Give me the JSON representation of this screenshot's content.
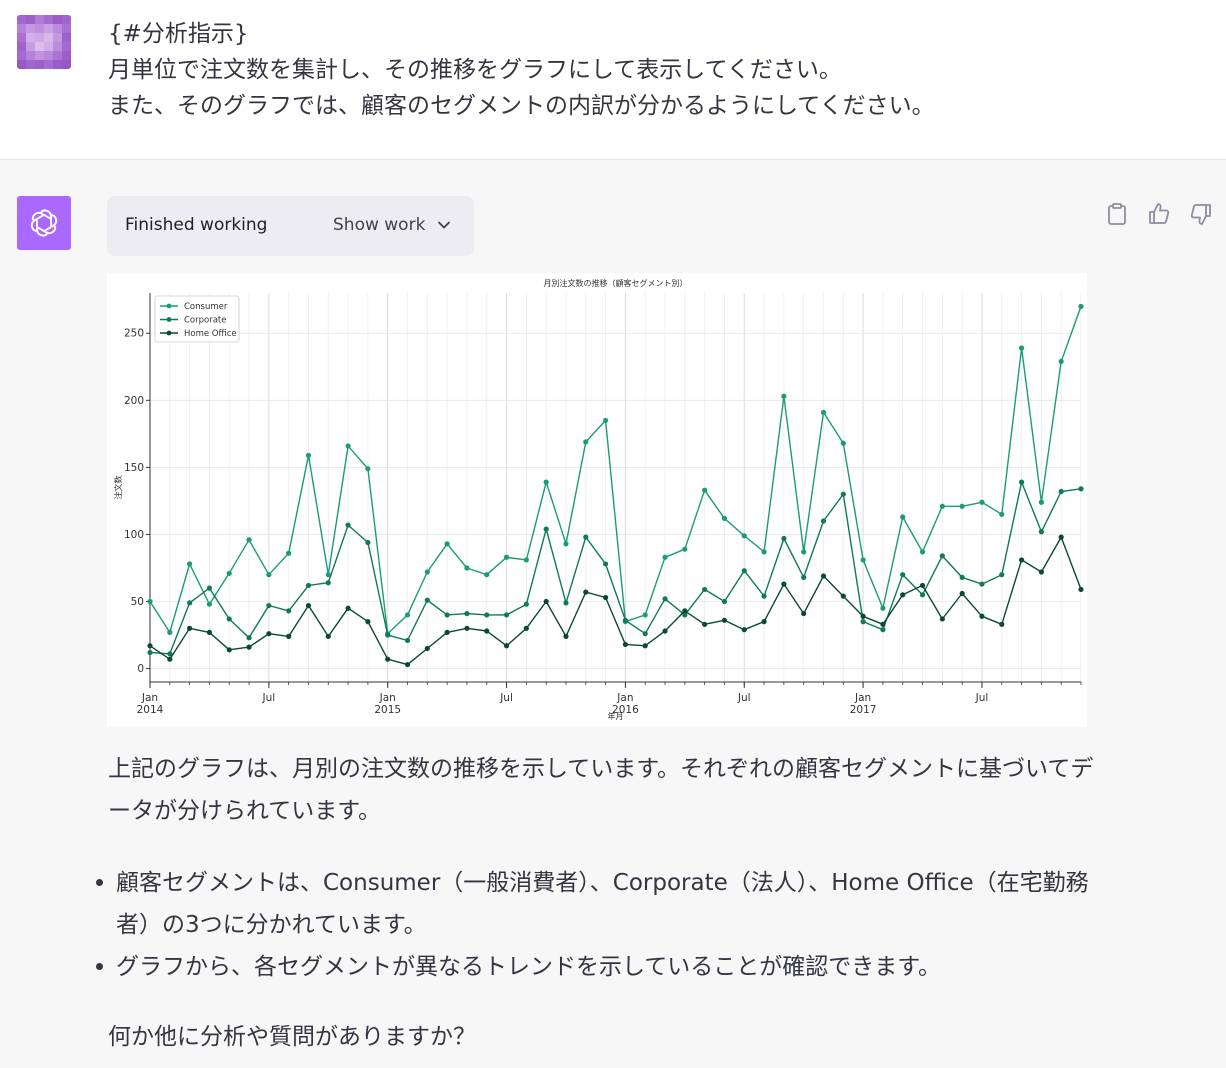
{
  "user_message": {
    "lines": [
      "{#分析指示}",
      "月単位で注文数を集計し、その推移をグラフにして表示してください。",
      "また、そのグラフでは、顧客のセグメントの内訳が分かるようにしてください。"
    ]
  },
  "assistant": {
    "status_label": "Finished working",
    "show_work_label": "Show work",
    "answer_paragraph": "上記のグラフは、月別の注文数の推移を示しています。それぞれの顧客セグメントに基づいてデータが分けられています。",
    "bullets": [
      "顧客セグメントは、Consumer（一般消費者）、Corporate（法人）、Home Office（在宅勤務者）の3つに分かれています。",
      "グラフから、各セグメントが異なるトレンドを示していることが確認できます。"
    ],
    "closing": "何か他に分析や質問がありますか？"
  },
  "icons": {
    "copy": "clipboard-icon",
    "like": "thumbs-up-icon",
    "dislike": "thumbs-down-icon",
    "bot": "openai-logo-icon",
    "chevron": "chevron-down-icon"
  },
  "colors": {
    "bot_avatar": "#ab68ff",
    "user_avatar": "#9b59c9",
    "consumer": "#1a9c78",
    "corporate": "#0f7a57",
    "home_office": "#0b4a32"
  },
  "chart_data": {
    "type": "line",
    "title": "月別注文数の推移（顧客セグメント別）",
    "xlabel": "年月",
    "ylabel": "注文数",
    "ylim": [
      -10,
      280
    ],
    "yticks": [
      0,
      50,
      100,
      150,
      200,
      250
    ],
    "grid": true,
    "legend_position": "top-left",
    "x_start": "2014-01",
    "x_end": "2017-12",
    "x_tick_labels": [
      {
        "month_index": 0,
        "line1": "Jan",
        "line2": "2014"
      },
      {
        "month_index": 6,
        "line1": "Jul",
        "line2": ""
      },
      {
        "month_index": 12,
        "line1": "Jan",
        "line2": "2015"
      },
      {
        "month_index": 18,
        "line1": "Jul",
        "line2": ""
      },
      {
        "month_index": 24,
        "line1": "Jan",
        "line2": "2016"
      },
      {
        "month_index": 30,
        "line1": "Jul",
        "line2": ""
      },
      {
        "month_index": 36,
        "line1": "Jan",
        "line2": "2017"
      },
      {
        "month_index": 42,
        "line1": "Jul",
        "line2": ""
      }
    ],
    "series": [
      {
        "name": "Consumer",
        "values": [
          50,
          27,
          78,
          48,
          71,
          96,
          70,
          86,
          159,
          70,
          166,
          149,
          26,
          40,
          72,
          93,
          75,
          70,
          83,
          81,
          139,
          93,
          169,
          185,
          35,
          40,
          83,
          89,
          133,
          112,
          99,
          87,
          203,
          87,
          191,
          168,
          81,
          45,
          113,
          87,
          121,
          121,
          124,
          115,
          239,
          124,
          229,
          270
        ]
      },
      {
        "name": "Corporate",
        "values": [
          12,
          11,
          49,
          60,
          37,
          23,
          47,
          43,
          62,
          64,
          107,
          94,
          25,
          21,
          51,
          40,
          41,
          40,
          40,
          48,
          104,
          49,
          98,
          78,
          36,
          26,
          52,
          40,
          59,
          50,
          73,
          54,
          97,
          68,
          110,
          130,
          35,
          29,
          70,
          55,
          84,
          68,
          63,
          70,
          139,
          102,
          132,
          134
        ]
      },
      {
        "name": "Home Office",
        "values": [
          17,
          7,
          30,
          27,
          14,
          16,
          26,
          24,
          47,
          24,
          45,
          35,
          7,
          3,
          15,
          27,
          30,
          28,
          17,
          30,
          50,
          24,
          57,
          53,
          18,
          17,
          28,
          43,
          33,
          36,
          29,
          35,
          63,
          41,
          69,
          54,
          39,
          33,
          55,
          62,
          37,
          56,
          39,
          33,
          81,
          72,
          98,
          59
        ]
      }
    ]
  }
}
